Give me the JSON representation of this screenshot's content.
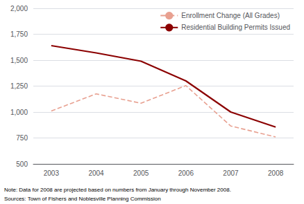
{
  "chart_data": {
    "type": "line",
    "x": [
      2003,
      2004,
      2005,
      2006,
      2007,
      2008
    ],
    "xlim": [
      2002.6,
      2008.4
    ],
    "xticks": [
      2003,
      2004,
      2005,
      2006,
      2007,
      2008
    ],
    "ylim": [
      500,
      2000
    ],
    "yticks": [
      500,
      750,
      {
        "value": 1000,
        "label": "1,000"
      },
      {
        "value": 1250,
        "label": "1,250"
      },
      {
        "value": 1500,
        "label": "1,500"
      },
      {
        "value": 1750,
        "label": "1,750"
      },
      {
        "value": 2000,
        "label": "2,000"
      }
    ],
    "series": [
      {
        "name": "Enrollment Change (All Grades)",
        "color": "#e8a090",
        "line_style": "dashed",
        "values": [
          1010,
          1175,
          1085,
          1255,
          865,
          760
        ]
      },
      {
        "name": "Residential Building Permits Issued",
        "color": "#8b0000",
        "line_style": "solid",
        "values": [
          1640,
          1570,
          1490,
          1300,
          1000,
          855
        ]
      }
    ],
    "grid": true,
    "legend": "upper right",
    "annotations": [
      "Note: Data for 2008 are projected based on numbers from January through November 2008.",
      "Sources: Town of Fishers and Noblesville Planning Commission"
    ]
  }
}
